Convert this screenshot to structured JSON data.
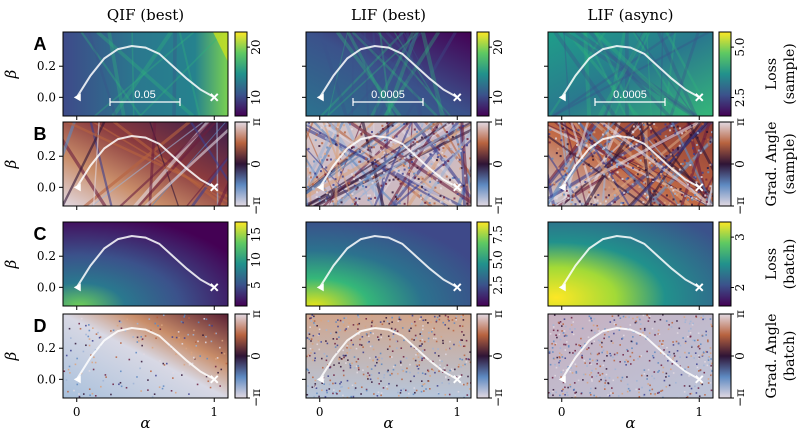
{
  "chart_data": {
    "type": "heatmap",
    "column_titles": [
      "QIF (best)",
      "LIF (best)",
      "LIF (async)"
    ],
    "row_labels": [
      "A",
      "B",
      "C",
      "D"
    ],
    "xlabel": "α",
    "ylabel": "β",
    "x_ticks": [
      "0",
      "1"
    ],
    "y_ticks": [
      "0.2",
      "0.0"
    ],
    "x_range": [
      -0.1,
      1.1
    ],
    "y_range": [
      -0.12,
      0.42
    ],
    "scale_bar_labels": [
      "0.05",
      "0.0005",
      "0.0005"
    ],
    "path": {
      "x": [
        0,
        0.1,
        0.2,
        0.3,
        0.4,
        0.5,
        0.6,
        0.7,
        0.8,
        0.9,
        1.0
      ],
      "y": [
        0,
        0.14,
        0.25,
        0.31,
        0.33,
        0.32,
        0.28,
        0.2,
        0.12,
        0.05,
        0
      ],
      "start_marker": "triangle",
      "end_marker": "cross"
    },
    "panels": {
      "A": {
        "colormap": "viridis",
        "side_label": [
          "Loss",
          "(sample)"
        ],
        "colorbars": [
          {
            "ticks": [
              "20",
              "10"
            ]
          },
          {
            "ticks": [
              "20",
              "10"
            ]
          },
          {
            "ticks": [
              "5.0",
              "2.5"
            ]
          }
        ]
      },
      "B": {
        "colormap": "twilight",
        "side_label": [
          "Grad. Angle",
          "(sample)"
        ],
        "colorbars": [
          {
            "ticks": [
              "π",
              "0",
              "−π"
            ]
          },
          {
            "ticks": [
              "π",
              "0",
              "−π"
            ]
          },
          {
            "ticks": [
              "π",
              "0",
              "−π"
            ]
          }
        ]
      },
      "C": {
        "colormap": "viridis",
        "side_label": [
          "Loss",
          "(batch)"
        ],
        "colorbars": [
          {
            "ticks": [
              "15",
              "10",
              "5"
            ]
          },
          {
            "ticks": [
              "7.5",
              "5.0",
              "2.5"
            ]
          },
          {
            "ticks": [
              "3",
              "2"
            ]
          }
        ]
      },
      "D": {
        "colormap": "twilight",
        "side_label": [
          "Grad. Angle",
          "(batch)"
        ],
        "colorbars": [
          {
            "ticks": [
              "π",
              "0",
              "−π"
            ]
          },
          {
            "ticks": [
              "π",
              "0",
              "−π"
            ]
          },
          {
            "ticks": [
              "π",
              "0",
              "−π"
            ]
          }
        ]
      }
    }
  }
}
